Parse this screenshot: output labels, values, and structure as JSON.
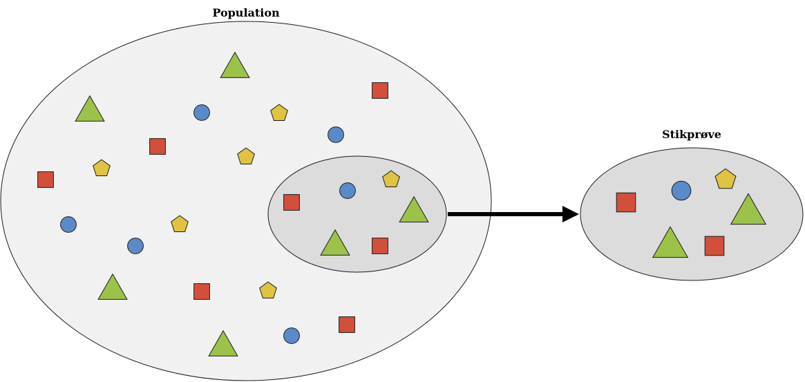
{
  "labels": {
    "population": "Population",
    "sample": "Stikprøve"
  },
  "colors": {
    "population_fill": "#f1f1f1",
    "sample_fill": "#dcdcdc",
    "outline": "#1a1a1a",
    "triangle": "#9dc24a",
    "circle": "#5b8ac9",
    "square": "#d24f3c",
    "pentagon": "#e0c340",
    "arrow": "#000000"
  },
  "shape_types": [
    "triangle-icon",
    "circle-icon",
    "square-icon",
    "pentagon-icon"
  ]
}
